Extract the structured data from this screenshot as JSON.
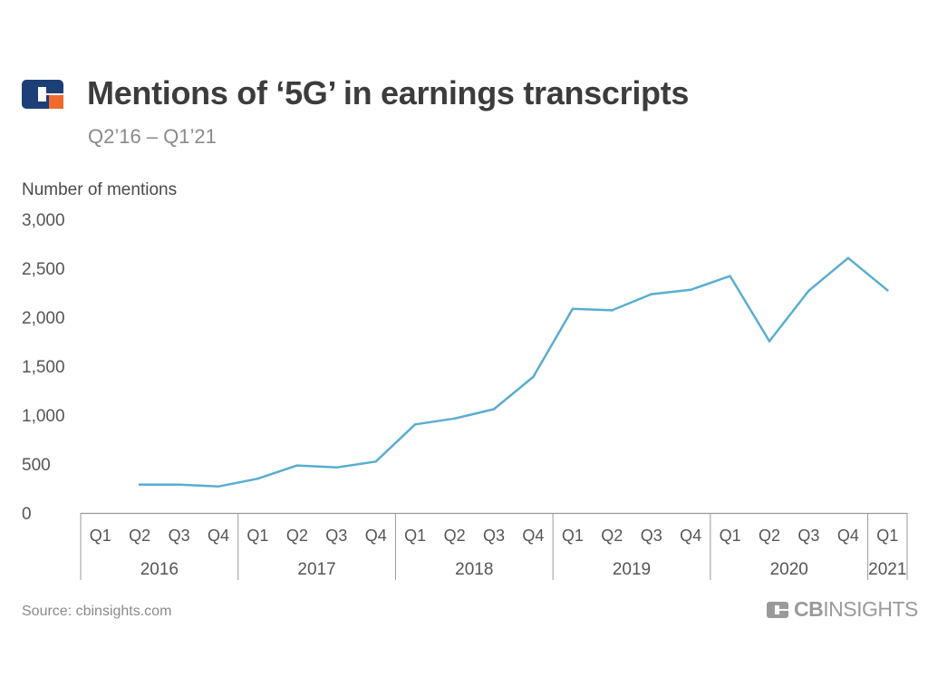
{
  "header": {
    "title": "Mentions of ‘5G’ in earnings transcripts",
    "subtitle": "Q2’16 – Q1’21"
  },
  "footer": {
    "source": "Source: cbinsights.com",
    "brand_bold": "CB",
    "brand_light": "INSIGHTS"
  },
  "icons": {
    "logo": "cb-insights-logo-icon",
    "brand": "cb-insights-brand-icon"
  },
  "colors": {
    "line": "#5aadd0",
    "logo_blue": "#1d3f78",
    "logo_orange": "#ef6a2d",
    "axis": "#9a9a9a"
  },
  "chart_data": {
    "type": "line",
    "ylabel": "Number of mentions",
    "ylim": [
      0,
      3000
    ],
    "yticks": [
      0,
      500,
      1000,
      1500,
      2000,
      2500,
      3000
    ],
    "ytick_labels": [
      "0",
      "500",
      "1,000",
      "1,500",
      "2,000",
      "2,500",
      "3,000"
    ],
    "grid": false,
    "categories": [
      "Q1",
      "Q2",
      "Q3",
      "Q4",
      "Q1",
      "Q2",
      "Q3",
      "Q4",
      "Q1",
      "Q2",
      "Q3",
      "Q4",
      "Q1",
      "Q2",
      "Q3",
      "Q4",
      "Q1",
      "Q2",
      "Q3",
      "Q4",
      "Q1"
    ],
    "years": [
      {
        "label": "2016",
        "quarters": 4
      },
      {
        "label": "2017",
        "quarters": 4
      },
      {
        "label": "2018",
        "quarters": 4
      },
      {
        "label": "2019",
        "quarters": 4
      },
      {
        "label": "2020",
        "quarters": 4
      },
      {
        "label": "2021",
        "quarters": 1
      }
    ],
    "series": [
      {
        "values": [
          null,
          290,
          290,
          270,
          350,
          485,
          465,
          525,
          905,
          965,
          1060,
          1390,
          2085,
          2070,
          2235,
          2280,
          2420,
          1755,
          2270,
          2605,
          2275
        ]
      }
    ]
  }
}
